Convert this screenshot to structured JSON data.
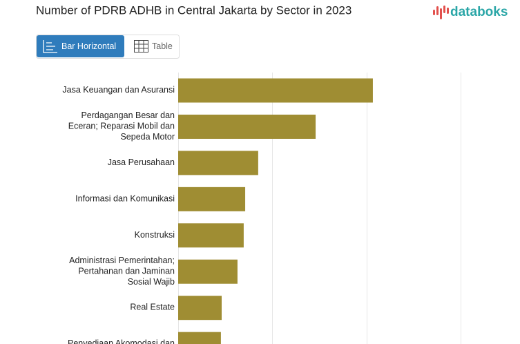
{
  "ui": {
    "buttons": [
      "Bar Horizontal",
      "Table"
    ],
    "logo": "databoks"
  },
  "chart_data": {
    "type": "bar",
    "orientation": "horizontal",
    "title": "Number of PDRB ADHB in Central Jakarta by Sector in 2023",
    "categories": [
      "Jasa Keuangan dan Asuransi",
      "Perdagangan Besar dan Eceran; Reparasi Mobil dan Sepeda Motor",
      "Jasa Perusahaan",
      "Informasi dan Komunikasi",
      "Konstruksi",
      "Administrasi Pemerintahan; Pertahanan dan Jaminan Sosial Wajib",
      "Real Estate",
      "Penyediaan Akomodasi dan"
    ],
    "values": [
      103.4,
      73,
      42.5,
      35.6,
      34.8,
      31.5,
      23.1,
      22.7
    ],
    "color": "#9f8d33",
    "xlim": [
      0,
      150
    ],
    "xticks": [
      0,
      50,
      100,
      150
    ],
    "grid": true
  }
}
